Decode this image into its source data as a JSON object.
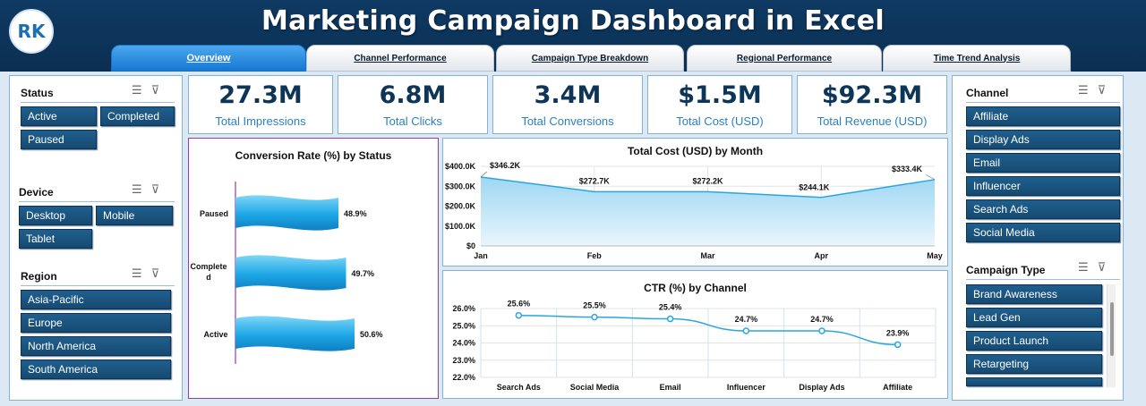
{
  "header": {
    "title": "Marketing Campaign Dashboard in Excel",
    "logo_icon": "rk-logo-icon"
  },
  "tabs": [
    {
      "label": "Overview",
      "active": true
    },
    {
      "label": "Channel Performance",
      "active": false
    },
    {
      "label": "Campaign Type Breakdown",
      "active": false
    },
    {
      "label": "Regional Performance",
      "active": false
    },
    {
      "label": "Time Trend Analysis",
      "active": false
    }
  ],
  "slicers": {
    "status": {
      "title": "Status",
      "items": [
        "Active",
        "Completed",
        "Paused"
      ]
    },
    "device": {
      "title": "Device",
      "items": [
        "Desktop",
        "Mobile",
        "Tablet"
      ]
    },
    "region": {
      "title": "Region",
      "items": [
        "Asia-Pacific",
        "Europe",
        "North America",
        "South America"
      ]
    },
    "channel": {
      "title": "Channel",
      "items": [
        "Affiliate",
        "Display Ads",
        "Email",
        "Influencer",
        "Search Ads",
        "Social Media"
      ]
    },
    "campaign_type": {
      "title": "Campaign Type",
      "items": [
        "Brand Awareness",
        "Lead Gen",
        "Product Launch",
        "Retargeting"
      ]
    }
  },
  "kpis": [
    {
      "value": "27.3M",
      "label": "Total Impressions"
    },
    {
      "value": "6.8M",
      "label": "Total Clicks"
    },
    {
      "value": "3.4M",
      "label": "Total Conversions"
    },
    {
      "value": "$1.5M",
      "label": "Total Cost (USD)"
    },
    {
      "value": "$92.3M",
      "label": "Total Revenue (USD)"
    }
  ],
  "colors": {
    "header": "#0b2f52",
    "button": "#1a5580",
    "accent": "#2b7fc3",
    "line": "#29a6df",
    "area": "#bfe4f7"
  },
  "chart_data": [
    {
      "type": "bar",
      "title": "Conversion Rate (%) by Status",
      "categories": [
        "Paused",
        "Completed",
        "Active"
      ],
      "values": [
        48.9,
        49.7,
        50.6
      ],
      "value_labels": [
        "48.9%",
        "49.7%",
        "50.6%"
      ],
      "orientation": "horizontal"
    },
    {
      "type": "area",
      "title": "Total Cost (USD) by Month",
      "categories": [
        "Jan",
        "Feb",
        "Mar",
        "Apr",
        "May"
      ],
      "values": [
        346.2,
        272.7,
        272.2,
        244.1,
        333.4
      ],
      "value_labels": [
        "$346.2K",
        "$272.7K",
        "$272.2K",
        "$244.1K",
        "$333.4K"
      ],
      "y_ticks": [
        "$0",
        "$100.0K",
        "$200.0K",
        "$300.0K",
        "$400.0K"
      ],
      "ylim": [
        0,
        400
      ]
    },
    {
      "type": "line",
      "title": "CTR (%) by Channel",
      "categories": [
        "Search Ads",
        "Social Media",
        "Email",
        "Influencer",
        "Display Ads",
        "Affiliate"
      ],
      "values": [
        25.6,
        25.5,
        25.4,
        24.7,
        24.7,
        23.9
      ],
      "value_labels": [
        "25.6%",
        "25.5%",
        "25.4%",
        "24.7%",
        "24.7%",
        "23.9%"
      ],
      "y_ticks": [
        "22.0%",
        "23.0%",
        "24.0%",
        "25.0%",
        "26.0%"
      ],
      "ylim": [
        22,
        26
      ]
    }
  ]
}
